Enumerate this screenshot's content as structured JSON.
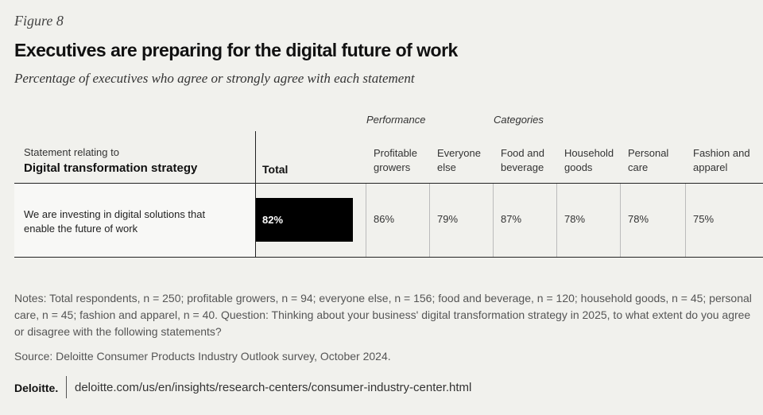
{
  "figure_label": "Figure 8",
  "title": "Executives are preparing for the digital future of work",
  "subtitle": "Percentage of executives who agree or strongly agree with each statement",
  "table": {
    "group_headers": [
      "Performance",
      "Categories"
    ],
    "statement_header": [
      "Statement relating to",
      "Digital transformation strategy"
    ],
    "total_header": "Total",
    "columns": [
      "Profitable growers",
      "Everyone else",
      "Food and beverage",
      "Household goods",
      "Personal care",
      "Fashion and apparel"
    ],
    "rows": [
      {
        "statement": "We are investing in digital solutions that enable the future of work",
        "total": 82,
        "total_label": "82%",
        "values": [
          86,
          79,
          87,
          78,
          78,
          75
        ],
        "value_labels": [
          "86%",
          "79%",
          "87%",
          "78%",
          "78%",
          "75%"
        ]
      }
    ]
  },
  "notes": "Notes: Total respondents, n = 250; profitable growers, n = 94; everyone else, n = 156; food and beverage, n = 120; household goods, n = 45; personal care, n = 45; fashion and apparel, n = 40. Question: Thinking about your business' digital transformation strategy in 2025, to what extent do you agree or disagree with the following statements?",
  "source": "Source: Deloitte Consumer Products Industry Outlook survey, October 2024.",
  "footer": {
    "brand": "Deloitte.",
    "url": "deloitte.com/us/en/insights/research-centers/consumer-industry-center.html"
  }
}
